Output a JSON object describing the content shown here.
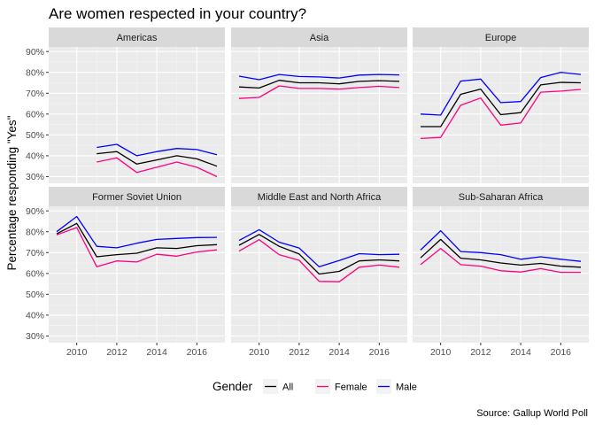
{
  "chart_data": {
    "type": "line",
    "title": "Are women respected in your country?",
    "ylabel": "Percentage responding \"Yes\"",
    "xlabel": "",
    "caption": "Source: Gallup World Poll",
    "x_ticks": [
      2010,
      2012,
      2014,
      2016
    ],
    "x_tick_labels": [
      "2010",
      "2012",
      "2014",
      "2016"
    ],
    "xlim": [
      2008.6,
      2017.4
    ],
    "y_ticks": [
      0.3,
      0.4,
      0.5,
      0.6,
      0.7,
      0.8,
      0.9
    ],
    "y_tick_labels": [
      "30%",
      "40%",
      "50%",
      "60%",
      "70%",
      "80%",
      "90%"
    ],
    "ylim": [
      0.268,
      0.922
    ],
    "grid": true,
    "legend": {
      "title": "Gender",
      "placement": "bottom",
      "entries": [
        {
          "name": "All",
          "color": "#000000"
        },
        {
          "name": "Female",
          "color": "#ff007f"
        },
        {
          "name": "Male",
          "color": "#0000ff"
        }
      ]
    },
    "panels": [
      {
        "name": "Americas",
        "x": [
          2011,
          2012,
          2013,
          2014,
          2015,
          2016,
          2017
        ],
        "series": [
          {
            "name": "All",
            "values": [
              0.41,
              0.42,
              0.36,
              0.38,
              0.4,
              0.385,
              0.35
            ]
          },
          {
            "name": "Female",
            "values": [
              0.37,
              0.39,
              0.32,
              0.345,
              0.37,
              0.345,
              0.3
            ]
          },
          {
            "name": "Male",
            "values": [
              0.44,
              0.455,
              0.4,
              0.42,
              0.435,
              0.43,
              0.405
            ]
          }
        ]
      },
      {
        "name": "Asia",
        "x": [
          2009,
          2010,
          2011,
          2012,
          2013,
          2014,
          2015,
          2016,
          2017
        ],
        "series": [
          {
            "name": "All",
            "values": [
              0.73,
              0.725,
              0.762,
              0.75,
              0.75,
              0.745,
              0.757,
              0.76,
              0.757
            ]
          },
          {
            "name": "Female",
            "values": [
              0.675,
              0.68,
              0.735,
              0.723,
              0.723,
              0.72,
              0.727,
              0.733,
              0.727
            ]
          },
          {
            "name": "Male",
            "values": [
              0.782,
              0.765,
              0.79,
              0.78,
              0.778,
              0.773,
              0.787,
              0.79,
              0.788
            ]
          }
        ]
      },
      {
        "name": "Europe",
        "x": [
          2009,
          2010,
          2011,
          2012,
          2013,
          2014,
          2015,
          2016,
          2017
        ],
        "series": [
          {
            "name": "All",
            "values": [
              0.54,
              0.54,
              0.695,
              0.72,
              0.597,
              0.607,
              0.74,
              0.752,
              0.75
            ]
          },
          {
            "name": "Female",
            "values": [
              0.483,
              0.488,
              0.642,
              0.677,
              0.547,
              0.557,
              0.705,
              0.71,
              0.718
            ]
          },
          {
            "name": "Male",
            "values": [
              0.6,
              0.595,
              0.758,
              0.768,
              0.655,
              0.66,
              0.775,
              0.8,
              0.79
            ]
          }
        ]
      },
      {
        "name": "Former Soviet Union",
        "x": [
          2009,
          2010,
          2011,
          2012,
          2013,
          2014,
          2015,
          2016,
          2017
        ],
        "series": [
          {
            "name": "All",
            "values": [
              0.79,
              0.84,
              0.68,
              0.69,
              0.697,
              0.723,
              0.72,
              0.733,
              0.738
            ]
          },
          {
            "name": "Female",
            "values": [
              0.785,
              0.82,
              0.632,
              0.66,
              0.655,
              0.692,
              0.683,
              0.703,
              0.713
            ]
          },
          {
            "name": "Male",
            "values": [
              0.8,
              0.873,
              0.73,
              0.723,
              0.745,
              0.763,
              0.768,
              0.772,
              0.773
            ]
          }
        ]
      },
      {
        "name": "Middle East and North Africa",
        "x": [
          2009,
          2010,
          2011,
          2012,
          2013,
          2014,
          2015,
          2016,
          2017
        ],
        "series": [
          {
            "name": "All",
            "values": [
              0.735,
              0.787,
              0.73,
              0.693,
              0.597,
              0.61,
              0.66,
              0.665,
              0.66
            ]
          },
          {
            "name": "Female",
            "values": [
              0.707,
              0.762,
              0.69,
              0.663,
              0.562,
              0.56,
              0.63,
              0.64,
              0.63
            ]
          },
          {
            "name": "Male",
            "values": [
              0.758,
              0.81,
              0.75,
              0.722,
              0.632,
              0.662,
              0.695,
              0.69,
              0.692
            ]
          }
        ]
      },
      {
        "name": "Sub-Saharan Africa",
        "x": [
          2009,
          2010,
          2011,
          2012,
          2013,
          2014,
          2015,
          2016,
          2017
        ],
        "series": [
          {
            "name": "All",
            "values": [
              0.675,
              0.763,
              0.673,
              0.665,
              0.65,
              0.64,
              0.648,
              0.635,
              0.63
            ]
          },
          {
            "name": "Female",
            "values": [
              0.642,
              0.72,
              0.642,
              0.635,
              0.613,
              0.607,
              0.623,
              0.605,
              0.605
            ]
          },
          {
            "name": "Male",
            "values": [
              0.712,
              0.805,
              0.705,
              0.7,
              0.69,
              0.668,
              0.68,
              0.668,
              0.658
            ]
          }
        ]
      }
    ]
  }
}
